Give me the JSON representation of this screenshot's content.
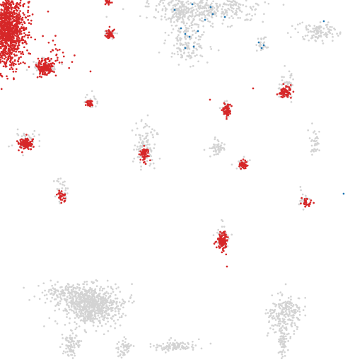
{
  "chart_data": {
    "type": "scatter",
    "title": "",
    "xlabel": "",
    "ylabel": "",
    "grid": false,
    "legend": "none",
    "series": [
      {
        "color": "#d3d3d3",
        "clusters": [
          {
            "cx": 290,
            "cy": 10,
            "sx": 40,
            "sy": 12,
            "n": 420
          },
          {
            "cx": 265,
            "cy": 60,
            "sx": 14,
            "sy": 14,
            "n": 160
          },
          {
            "cx": 255,
            "cy": 15,
            "sx": 10,
            "sy": 10,
            "n": 90
          },
          {
            "cx": 448,
            "cy": 45,
            "sx": 14,
            "sy": 7,
            "n": 110
          },
          {
            "cx": 370,
            "cy": 62,
            "sx": 4,
            "sy": 5,
            "n": 25
          },
          {
            "cx": 405,
            "cy": 120,
            "sx": 5,
            "sy": 12,
            "n": 40
          },
          {
            "cx": 320,
            "cy": 152,
            "sx": 4,
            "sy": 6,
            "n": 25
          },
          {
            "cx": 205,
            "cy": 205,
            "sx": 8,
            "sy": 16,
            "n": 110
          },
          {
            "cx": 307,
            "cy": 210,
            "sx": 6,
            "sy": 5,
            "n": 50
          },
          {
            "cx": 447,
            "cy": 200,
            "sx": 4,
            "sy": 9,
            "n": 40
          },
          {
            "cx": 343,
            "cy": 232,
            "sx": 4,
            "sy": 5,
            "n": 20
          },
          {
            "cx": 87,
            "cy": 270,
            "sx": 5,
            "sy": 8,
            "n": 35
          },
          {
            "cx": 430,
            "cy": 282,
            "sx": 4,
            "sy": 6,
            "n": 20
          },
          {
            "cx": 314,
            "cy": 335,
            "sx": 5,
            "sy": 10,
            "n": 35
          },
          {
            "cx": 130,
            "cy": 432,
            "sx": 20,
            "sy": 14,
            "n": 700
          },
          {
            "cx": 95,
            "cy": 415,
            "sx": 22,
            "sy": 6,
            "n": 140
          },
          {
            "cx": 100,
            "cy": 488,
            "sx": 6,
            "sy": 9,
            "n": 80
          },
          {
            "cx": 175,
            "cy": 492,
            "sx": 5,
            "sy": 6,
            "n": 50
          },
          {
            "cx": 245,
            "cy": 490,
            "sx": 16,
            "sy": 4,
            "n": 100
          },
          {
            "cx": 403,
            "cy": 445,
            "sx": 12,
            "sy": 14,
            "n": 220
          },
          {
            "cx": 400,
            "cy": 485,
            "sx": 3,
            "sy": 10,
            "n": 60
          },
          {
            "cx": 127,
            "cy": 144,
            "sx": 5,
            "sy": 5,
            "n": 20
          },
          {
            "cx": 36,
            "cy": 200,
            "sx": 8,
            "sy": 8,
            "n": 40
          },
          {
            "cx": 62,
            "cy": 95,
            "sx": 10,
            "sy": 7,
            "n": 50
          },
          {
            "cx": 156,
            "cy": 48,
            "sx": 4,
            "sy": 4,
            "n": 15
          }
        ]
      },
      {
        "color": "#d62728",
        "clusters": [
          {
            "cx": 8,
            "cy": 40,
            "sx": 14,
            "sy": 26,
            "n": 1400
          },
          {
            "cx": 62,
            "cy": 95,
            "sx": 6,
            "sy": 5,
            "n": 160
          },
          {
            "cx": 80,
            "cy": 80,
            "sx": 12,
            "sy": 12,
            "n": 30
          },
          {
            "cx": 156,
            "cy": 48,
            "sx": 3,
            "sy": 3,
            "n": 45
          },
          {
            "cx": 152,
            "cy": 3,
            "sx": 3,
            "sy": 2,
            "n": 20
          },
          {
            "cx": 127,
            "cy": 146,
            "sx": 3,
            "sy": 3,
            "n": 35
          },
          {
            "cx": 37,
            "cy": 204,
            "sx": 5,
            "sy": 4,
            "n": 110
          },
          {
            "cx": 205,
            "cy": 218,
            "sx": 3,
            "sy": 5,
            "n": 60
          },
          {
            "cx": 321,
            "cy": 155,
            "sx": 3,
            "sy": 5,
            "n": 60
          },
          {
            "cx": 404,
            "cy": 130,
            "sx": 4,
            "sy": 4,
            "n": 70
          },
          {
            "cx": 344,
            "cy": 233,
            "sx": 3,
            "sy": 3,
            "n": 40
          },
          {
            "cx": 87,
            "cy": 277,
            "sx": 3,
            "sy": 4,
            "n": 30
          },
          {
            "cx": 433,
            "cy": 286,
            "sx": 3,
            "sy": 3,
            "n": 30
          },
          {
            "cx": 315,
            "cy": 340,
            "sx": 4,
            "sy": 6,
            "n": 110
          }
        ]
      },
      {
        "color": "#1f77b4",
        "points": [
          [
            247,
            14
          ],
          [
            272,
            6
          ],
          [
            301,
            20
          ],
          [
            318,
            24
          ],
          [
            290,
            28
          ],
          [
            256,
            40
          ],
          [
            262,
            48
          ],
          [
            268,
            52
          ],
          [
            274,
            66
          ],
          [
            262,
            68
          ],
          [
            366,
            60
          ],
          [
            373,
            64
          ],
          [
            370,
            68
          ],
          [
            458,
            30
          ],
          [
            280,
            44
          ],
          [
            298,
            10
          ]
        ]
      }
    ],
    "outliers": [
      {
        "x": 486,
        "y": 274,
        "color": "#1f77b4"
      },
      {
        "x": 321,
        "y": 377,
        "color": "#d62728"
      },
      {
        "x": 128,
        "y": 101,
        "color": "#d62728"
      },
      {
        "x": 297,
        "y": 141,
        "color": "#d62728"
      },
      {
        "x": 358,
        "y": 125,
        "color": "#d62728"
      }
    ]
  }
}
